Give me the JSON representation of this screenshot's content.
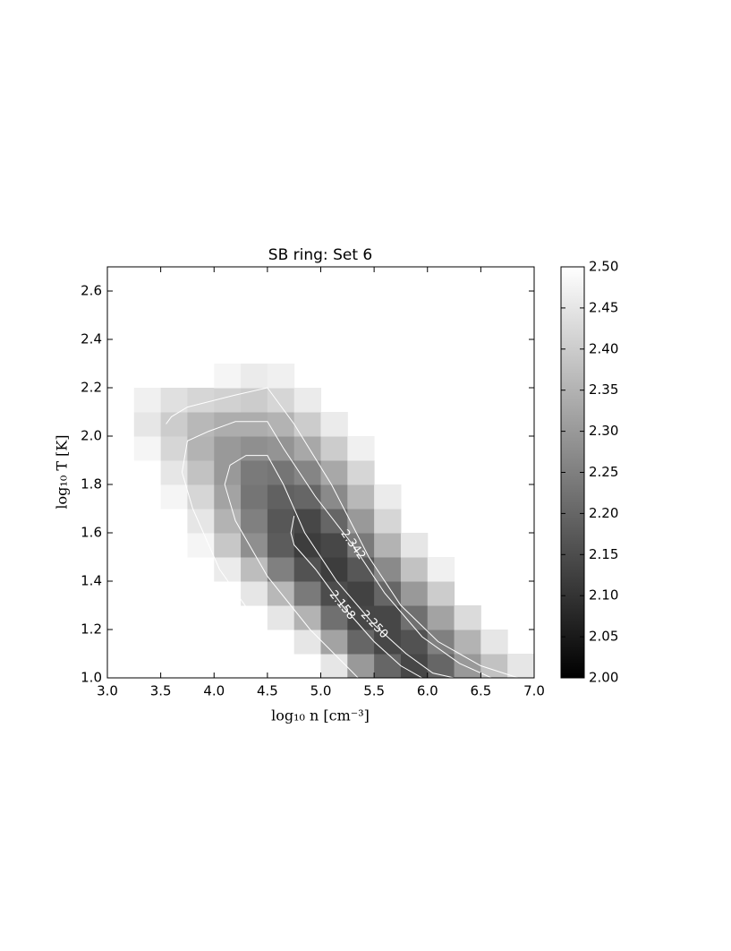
{
  "chart_data": {
    "type": "heatmap",
    "title": "SB ring: Set 6",
    "x_label": "log₁₀ n [cm⁻³]",
    "y_label": "log₁₀ T [K]",
    "xlim": [
      3.0,
      7.0
    ],
    "ylim": [
      1.0,
      2.7
    ],
    "xticks": [
      {
        "value": 3.0,
        "label": "3.0"
      },
      {
        "value": 3.5,
        "label": "3.5"
      },
      {
        "value": 4.0,
        "label": "4.0"
      },
      {
        "value": 4.5,
        "label": "4.5"
      },
      {
        "value": 5.0,
        "label": "5.0"
      },
      {
        "value": 5.5,
        "label": "5.5"
      },
      {
        "value": 6.0,
        "label": "6.0"
      },
      {
        "value": 6.5,
        "label": "6.5"
      },
      {
        "value": 7.0,
        "label": "7.0"
      }
    ],
    "yticks": [
      {
        "value": 1.0,
        "label": "1.0"
      },
      1.2,
      1.4,
      1.6,
      1.8,
      {
        "value": 2.0,
        "label": "2.0"
      },
      2.2,
      2.4,
      2.6
    ],
    "cmap": "gray",
    "zlim": [
      2.0,
      2.5
    ],
    "zticks": [
      {
        "value": 2.0,
        "label": "2.00"
      },
      2.05,
      {
        "value": 2.1,
        "label": "2.10"
      },
      2.15,
      {
        "value": 2.2,
        "label": "2.20"
      },
      2.25,
      {
        "value": 2.3,
        "label": "2.30"
      },
      2.35,
      {
        "value": 2.4,
        "label": "2.40"
      },
      2.45,
      {
        "value": 2.5,
        "label": "2.50"
      }
    ],
    "xbins": [
      3.0,
      3.25,
      3.5,
      3.75,
      4.0,
      4.25,
      4.5,
      4.75,
      5.0,
      5.25,
      5.5,
      5.75,
      6.0,
      6.25,
      6.5,
      6.75,
      7.0
    ],
    "ybins": [
      1.0,
      1.1,
      1.2,
      1.3,
      1.4,
      1.5,
      1.6,
      1.7,
      1.8,
      1.9,
      2.0,
      2.1,
      2.2,
      2.3,
      2.4,
      2.5,
      2.6,
      2.7
    ],
    "z": [
      [
        null,
        null,
        null,
        null,
        null,
        null,
        null,
        null,
        2.45,
        2.3,
        2.2,
        2.14,
        2.2,
        2.3,
        2.38,
        2.45
      ],
      [
        null,
        null,
        null,
        null,
        null,
        null,
        null,
        2.45,
        2.32,
        2.2,
        2.14,
        2.16,
        2.25,
        2.35,
        2.45,
        null
      ],
      [
        null,
        null,
        null,
        null,
        null,
        null,
        2.45,
        2.35,
        2.22,
        2.14,
        2.14,
        2.22,
        2.32,
        2.43,
        null,
        null
      ],
      [
        null,
        null,
        null,
        null,
        null,
        2.45,
        2.36,
        2.24,
        2.15,
        2.13,
        2.2,
        2.3,
        2.4,
        null,
        null,
        null
      ],
      [
        null,
        null,
        null,
        null,
        2.46,
        2.37,
        2.25,
        2.16,
        2.12,
        2.17,
        2.27,
        2.38,
        2.47,
        null,
        null,
        null
      ],
      [
        null,
        null,
        null,
        2.48,
        2.39,
        2.28,
        2.18,
        2.12,
        2.14,
        2.24,
        2.35,
        2.45,
        null,
        null,
        null,
        null
      ],
      [
        null,
        null,
        null,
        2.45,
        2.35,
        2.25,
        2.17,
        2.14,
        2.2,
        2.3,
        2.42,
        null,
        null,
        null,
        null,
        null
      ],
      [
        null,
        null,
        2.48,
        2.42,
        2.32,
        2.23,
        2.19,
        2.2,
        2.27,
        2.36,
        2.46,
        null,
        null,
        null,
        null,
        null
      ],
      [
        null,
        null,
        2.45,
        2.38,
        2.3,
        2.24,
        2.23,
        2.26,
        2.33,
        2.42,
        null,
        null,
        null,
        null,
        null,
        null
      ],
      [
        null,
        2.48,
        2.42,
        2.35,
        2.3,
        2.28,
        2.29,
        2.33,
        2.4,
        2.47,
        null,
        null,
        null,
        null,
        null,
        null
      ],
      [
        null,
        2.45,
        2.4,
        2.36,
        2.34,
        2.34,
        2.35,
        2.4,
        2.46,
        null,
        null,
        null,
        null,
        null,
        null,
        null
      ],
      [
        null,
        2.47,
        2.44,
        2.42,
        2.41,
        2.4,
        2.42,
        2.46,
        null,
        null,
        null,
        null,
        null,
        null,
        null,
        null
      ],
      [
        null,
        null,
        null,
        null,
        2.48,
        2.46,
        2.47,
        null,
        null,
        null,
        null,
        null,
        null,
        null,
        null,
        null
      ],
      [
        null,
        null,
        null,
        null,
        null,
        null,
        null,
        null,
        null,
        null,
        null,
        null,
        null,
        null,
        null,
        null
      ],
      [
        null,
        null,
        null,
        null,
        null,
        null,
        null,
        null,
        null,
        null,
        null,
        null,
        null,
        null,
        null,
        null
      ],
      [
        null,
        null,
        null,
        null,
        null,
        null,
        null,
        null,
        null,
        null,
        null,
        null,
        null,
        null,
        null,
        null
      ],
      [
        null,
        null,
        null,
        null,
        null,
        null,
        null,
        null,
        null,
        null,
        null,
        null,
        null,
        null,
        null,
        null
      ]
    ],
    "contour_color": "#ffffff",
    "contours": [
      {
        "level": 2.434,
        "x": [
          3.55,
          3.6,
          3.75,
          4.2,
          4.5,
          4.75,
          5.1,
          5.45,
          5.75,
          6.1,
          6.5,
          6.85
        ],
        "y": [
          2.05,
          2.08,
          2.12,
          2.17,
          2.2,
          2.05,
          1.8,
          1.5,
          1.3,
          1.15,
          1.05,
          1.0
        ]
      },
      {
        "level": 2.342,
        "value_label": "2.342",
        "x": [
          4.9,
          4.45,
          4.05,
          3.8,
          3.7,
          3.75,
          3.95,
          4.2,
          4.5,
          4.65,
          4.95,
          5.3,
          5.6,
          5.95,
          6.3,
          6.6
        ],
        "y": [
          1.0,
          1.2,
          1.45,
          1.7,
          1.85,
          1.98,
          2.02,
          2.06,
          2.06,
          1.95,
          1.75,
          1.55,
          1.35,
          1.17,
          1.06,
          1.0
        ]
      },
      {
        "level": 2.25,
        "value_label": "2.250",
        "x": [
          5.35,
          4.9,
          4.5,
          4.2,
          4.1,
          4.15,
          4.3,
          4.5,
          4.65,
          4.85,
          5.15,
          5.5,
          5.8,
          6.05,
          6.25
        ],
        "y": [
          1.0,
          1.2,
          1.42,
          1.65,
          1.8,
          1.88,
          1.92,
          1.92,
          1.8,
          1.6,
          1.4,
          1.22,
          1.1,
          1.02,
          1.0
        ]
      },
      {
        "level": 2.158,
        "value_label": "2.158",
        "x": [
          4.75,
          4.72,
          4.75,
          4.95,
          5.2,
          5.5,
          5.75,
          5.95
        ],
        "y": [
          1.67,
          1.6,
          1.55,
          1.45,
          1.3,
          1.15,
          1.05,
          1.0
        ]
      }
    ]
  }
}
